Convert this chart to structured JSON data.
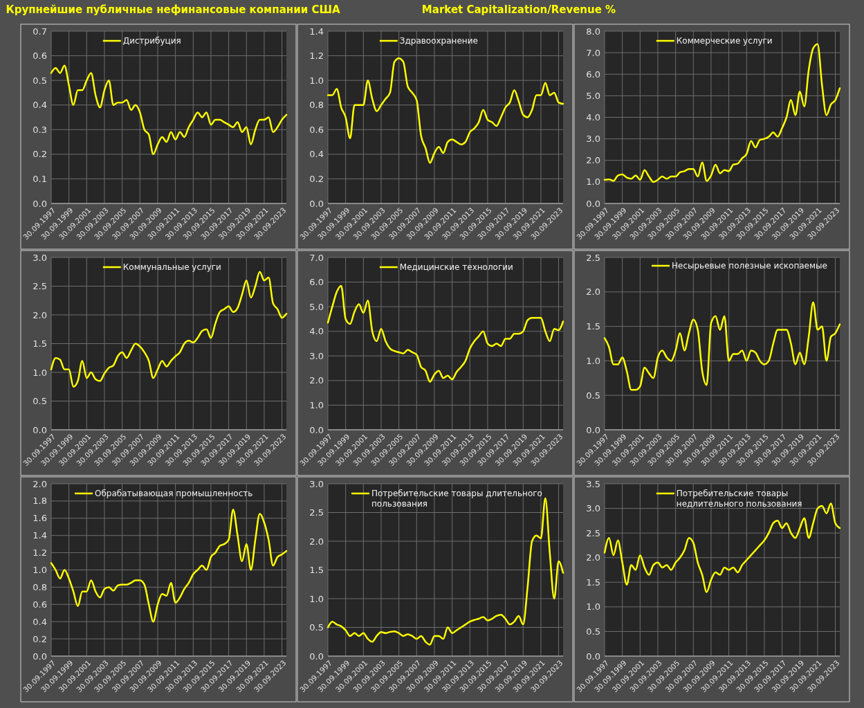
{
  "chart_data": [
    {
      "type": "line",
      "title": "Крупнейшие публичные нефинансовые компании США",
      "grid": true,
      "legend": "top",
      "x": [
        "1997-09-30",
        "1998-03-31",
        "1998-09-30",
        "1999-03-31",
        "1999-09-30",
        "2000-03-31",
        "2000-09-30",
        "2001-03-31",
        "2001-09-30",
        "2002-03-31",
        "2002-09-30",
        "2003-03-31",
        "2003-09-30",
        "2004-03-31",
        "2004-09-30",
        "2005-03-31",
        "2005-09-30",
        "2006-03-31",
        "2006-09-30",
        "2007-03-31",
        "2007-09-30",
        "2008-03-31",
        "2008-09-30",
        "2009-03-31",
        "2009-09-30",
        "2010-03-31",
        "2010-09-30",
        "2011-03-31",
        "2011-09-30",
        "2012-03-31",
        "2012-09-30",
        "2013-03-31",
        "2013-09-30",
        "2014-03-31",
        "2014-09-30",
        "2015-03-31",
        "2015-09-30",
        "2016-03-31",
        "2016-09-30",
        "2017-03-31",
        "2017-09-30",
        "2018-03-31",
        "2018-09-30",
        "2019-03-31",
        "2019-09-30",
        "2020-03-31",
        "2020-09-30",
        "2021-03-31",
        "2021-09-30",
        "2022-03-31",
        "2022-09-30",
        "2023-03-31",
        "2023-09-30",
        "2024-03-31"
      ],
      "xlim": [
        "1997-09-30",
        "2024-03-31"
      ],
      "xticks": [
        {
          "value": "1997-09-30",
          "label": "30.09.1997"
        },
        {
          "value": "1999-09-30",
          "label": "30.09.1999"
        },
        {
          "value": "2001-09-30",
          "label": "30.09.2001"
        },
        {
          "value": "2003-09-30",
          "label": "30.09.2003"
        },
        {
          "value": "2005-09-30",
          "label": "30.09.2005"
        },
        {
          "value": "2007-09-30",
          "label": "30.09.2007"
        },
        {
          "value": "2009-09-30",
          "label": "30.09.2009"
        },
        {
          "value": "2011-09-30",
          "label": "30.09.2011"
        },
        {
          "value": "2013-09-30",
          "label": "30.09.2013"
        },
        {
          "value": "2015-09-30",
          "label": "30.09.2015"
        },
        {
          "value": "2017-09-30",
          "label": "30.09.2017"
        },
        {
          "value": "2019-09-30",
          "label": "30.09.2019"
        },
        {
          "value": "2021-09-30",
          "label": "30.09.2021"
        },
        {
          "value": "2023-09-30",
          "label": "30.09.2023"
        }
      ],
      "ylim": [
        0,
        0.7
      ],
      "yticks": [
        {
          "value": 0,
          "label": "0.0"
        },
        0.1,
        0.2,
        0.3,
        0.4,
        0.5,
        0.6,
        0.7
      ],
      "series": [
        {
          "name": "Дистрибуция",
          "color": "#ffff00",
          "values": [
            0.53,
            0.55,
            0.53,
            0.56,
            0.48,
            0.4,
            0.46,
            0.46,
            0.5,
            0.53,
            0.44,
            0.39,
            0.46,
            0.5,
            0.4,
            0.41,
            0.41,
            0.42,
            0.38,
            0.4,
            0.37,
            0.3,
            0.28,
            0.2,
            0.24,
            0.27,
            0.25,
            0.29,
            0.26,
            0.29,
            0.27,
            0.31,
            0.34,
            0.37,
            0.35,
            0.37,
            0.32,
            0.34,
            0.34,
            0.33,
            0.32,
            0.31,
            0.33,
            0.29,
            0.31,
            0.24,
            0.3,
            0.34,
            0.34,
            0.35,
            0.29,
            0.31,
            0.34,
            0.36
          ]
        }
      ]
    },
    {
      "type": "line",
      "subtitle": "Market Capitalization/Revenue %",
      "grid": true,
      "legend": "top",
      "x": [
        "1997-09-30",
        "1998-03-31",
        "1998-09-30",
        "1999-03-31",
        "1999-09-30",
        "2000-03-31",
        "2000-09-30",
        "2001-03-31",
        "2001-09-30",
        "2002-03-31",
        "2002-09-30",
        "2003-03-31",
        "2003-09-30",
        "2004-03-31",
        "2004-09-30",
        "2005-03-31",
        "2005-09-30",
        "2006-03-31",
        "2006-09-30",
        "2007-03-31",
        "2007-09-30",
        "2008-03-31",
        "2008-09-30",
        "2009-03-31",
        "2009-09-30",
        "2010-03-31",
        "2010-09-30",
        "2011-03-31",
        "2011-09-30",
        "2012-03-31",
        "2012-09-30",
        "2013-03-31",
        "2013-09-30",
        "2014-03-31",
        "2014-09-30",
        "2015-03-31",
        "2015-09-30",
        "2016-03-31",
        "2016-09-30",
        "2017-03-31",
        "2017-09-30",
        "2018-03-31",
        "2018-09-30",
        "2019-03-31",
        "2019-09-30",
        "2020-03-31",
        "2020-09-30",
        "2021-03-31",
        "2021-09-30",
        "2022-03-31",
        "2022-09-30",
        "2023-03-31",
        "2023-09-30",
        "2024-03-31"
      ],
      "xlim": [
        "1997-09-30",
        "2024-03-31"
      ],
      "xticks": [
        {
          "value": "1997-09-30",
          "label": "30.09.1997"
        },
        {
          "value": "1999-09-30",
          "label": "30.09.1999"
        },
        {
          "value": "2001-09-30",
          "label": "30.09.2001"
        },
        {
          "value": "2003-09-30",
          "label": "30.09.2003"
        },
        {
          "value": "2005-09-30",
          "label": "30.09.2005"
        },
        {
          "value": "2007-09-30",
          "label": "30.09.2007"
        },
        {
          "value": "2009-09-30",
          "label": "30.09.2009"
        },
        {
          "value": "2011-09-30",
          "label": "30.09.2011"
        },
        {
          "value": "2013-09-30",
          "label": "30.09.2013"
        },
        {
          "value": "2015-09-30",
          "label": "30.09.2015"
        },
        {
          "value": "2017-09-30",
          "label": "30.09.2017"
        },
        {
          "value": "2019-09-30",
          "label": "30.09.2019"
        },
        {
          "value": "2021-09-30",
          "label": "30.09.2021"
        },
        {
          "value": "2023-09-30",
          "label": "30.09.2023"
        }
      ],
      "ylim": [
        0,
        1.4
      ],
      "yticks": [
        {
          "value": 0,
          "label": "0.0"
        },
        0.2,
        0.4,
        0.6,
        0.8,
        {
          "value": 1,
          "label": "1.0"
        },
        1.2,
        1.4
      ],
      "series": [
        {
          "name": "Здравоохранение",
          "color": "#ffff00",
          "values": [
            0.88,
            0.88,
            0.93,
            0.78,
            0.7,
            0.53,
            0.8,
            0.8,
            0.8,
            1.0,
            0.85,
            0.75,
            0.8,
            0.85,
            0.9,
            1.15,
            1.18,
            1.15,
            0.95,
            0.9,
            0.84,
            0.55,
            0.45,
            0.33,
            0.41,
            0.46,
            0.41,
            0.5,
            0.52,
            0.5,
            0.48,
            0.5,
            0.58,
            0.61,
            0.66,
            0.76,
            0.68,
            0.66,
            0.63,
            0.7,
            0.78,
            0.82,
            0.92,
            0.83,
            0.72,
            0.7,
            0.76,
            0.88,
            0.88,
            0.98,
            0.88,
            0.9,
            0.82,
            0.81
          ]
        }
      ]
    },
    {
      "type": "line",
      "grid": true,
      "legend": "top",
      "x": [
        "1997-09-30",
        "1998-03-31",
        "1998-09-30",
        "1999-03-31",
        "1999-09-30",
        "2000-03-31",
        "2000-09-30",
        "2001-03-31",
        "2001-09-30",
        "2002-03-31",
        "2002-09-30",
        "2003-03-31",
        "2003-09-30",
        "2004-03-31",
        "2004-09-30",
        "2005-03-31",
        "2005-09-30",
        "2006-03-31",
        "2006-09-30",
        "2007-03-31",
        "2007-09-30",
        "2008-03-31",
        "2008-09-30",
        "2009-03-31",
        "2009-09-30",
        "2010-03-31",
        "2010-09-30",
        "2011-03-31",
        "2011-09-30",
        "2012-03-31",
        "2012-09-30",
        "2013-03-31",
        "2013-09-30",
        "2014-03-31",
        "2014-09-30",
        "2015-03-31",
        "2015-09-30",
        "2016-03-31",
        "2016-09-30",
        "2017-03-31",
        "2017-09-30",
        "2018-03-31",
        "2018-09-30",
        "2019-03-31",
        "2019-09-30",
        "2020-03-31",
        "2020-09-30",
        "2021-03-31",
        "2021-09-30",
        "2022-03-31",
        "2022-09-30",
        "2023-03-31",
        "2023-09-30",
        "2024-03-31"
      ],
      "xlim": [
        "1997-09-30",
        "2024-03-31"
      ],
      "xticks": [
        {
          "value": "1997-09-30",
          "label": "30.09.1997"
        },
        {
          "value": "1999-09-30",
          "label": "30.09.1999"
        },
        {
          "value": "2001-09-30",
          "label": "30.09.2001"
        },
        {
          "value": "2003-09-30",
          "label": "30.09.2003"
        },
        {
          "value": "2005-09-30",
          "label": "30.09.2005"
        },
        {
          "value": "2007-09-30",
          "label": "30.09.2007"
        },
        {
          "value": "2009-09-30",
          "label": "30.09.2009"
        },
        {
          "value": "2011-09-30",
          "label": "30.09.2011"
        },
        {
          "value": "2013-09-30",
          "label": "30.09.2013"
        },
        {
          "value": "2015-09-30",
          "label": "30.09.2015"
        },
        {
          "value": "2017-09-30",
          "label": "30.09.2017"
        },
        {
          "value": "2019-09-30",
          "label": "30.09.2019"
        },
        {
          "value": "2021-09-30",
          "label": "30.09.2021"
        },
        {
          "value": "2023-09-30",
          "label": "30.09.2023"
        }
      ],
      "ylim": [
        0,
        8
      ],
      "yticks": [
        {
          "value": 0,
          "label": "0.0"
        },
        {
          "value": 1,
          "label": "1.0"
        },
        {
          "value": 2,
          "label": "2.0"
        },
        {
          "value": 3,
          "label": "3.0"
        },
        {
          "value": 4,
          "label": "4.0"
        },
        {
          "value": 5,
          "label": "5.0"
        },
        {
          "value": 6,
          "label": "6.0"
        },
        {
          "value": 7,
          "label": "7.0"
        },
        {
          "value": 8,
          "label": "8.0"
        }
      ],
      "series": [
        {
          "name": "Коммерческие услуги",
          "color": "#ffff00",
          "values": [
            1.1,
            1.12,
            1.05,
            1.3,
            1.35,
            1.2,
            1.15,
            1.3,
            1.1,
            1.55,
            1.25,
            1.0,
            1.1,
            1.25,
            1.15,
            1.25,
            1.25,
            1.45,
            1.5,
            1.6,
            1.6,
            1.25,
            1.9,
            1.05,
            1.3,
            1.8,
            1.4,
            1.55,
            1.5,
            1.8,
            1.85,
            2.1,
            2.3,
            2.9,
            2.6,
            2.95,
            3.0,
            3.1,
            3.3,
            3.1,
            3.5,
            4.0,
            4.8,
            4.1,
            5.2,
            4.5,
            6.2,
            7.2,
            7.4,
            5.5,
            4.1,
            4.6,
            4.8,
            5.35
          ]
        }
      ]
    },
    {
      "type": "line",
      "grid": true,
      "legend": "top",
      "x": [
        "1997-09-30",
        "1998-03-31",
        "1998-09-30",
        "1999-03-31",
        "1999-09-30",
        "2000-03-31",
        "2000-09-30",
        "2001-03-31",
        "2001-09-30",
        "2002-03-31",
        "2002-09-30",
        "2003-03-31",
        "2003-09-30",
        "2004-03-31",
        "2004-09-30",
        "2005-03-31",
        "2005-09-30",
        "2006-03-31",
        "2006-09-30",
        "2007-03-31",
        "2007-09-30",
        "2008-03-31",
        "2008-09-30",
        "2009-03-31",
        "2009-09-30",
        "2010-03-31",
        "2010-09-30",
        "2011-03-31",
        "2011-09-30",
        "2012-03-31",
        "2012-09-30",
        "2013-03-31",
        "2013-09-30",
        "2014-03-31",
        "2014-09-30",
        "2015-03-31",
        "2015-09-30",
        "2016-03-31",
        "2016-09-30",
        "2017-03-31",
        "2017-09-30",
        "2018-03-31",
        "2018-09-30",
        "2019-03-31",
        "2019-09-30",
        "2020-03-31",
        "2020-09-30",
        "2021-03-31",
        "2021-09-30",
        "2022-03-31",
        "2022-09-30",
        "2023-03-31",
        "2023-09-30",
        "2024-03-31"
      ],
      "xlim": [
        "1997-09-30",
        "2024-03-31"
      ],
      "xticks": [
        {
          "value": "1997-09-30",
          "label": "30.09.1997"
        },
        {
          "value": "1999-09-30",
          "label": "30.09.1999"
        },
        {
          "value": "2001-09-30",
          "label": "30.09.2001"
        },
        {
          "value": "2003-09-30",
          "label": "30.09.2003"
        },
        {
          "value": "2005-09-30",
          "label": "30.09.2005"
        },
        {
          "value": "2007-09-30",
          "label": "30.09.2007"
        },
        {
          "value": "2009-09-30",
          "label": "30.09.2009"
        },
        {
          "value": "2011-09-30",
          "label": "30.09.2011"
        },
        {
          "value": "2013-09-30",
          "label": "30.09.2013"
        },
        {
          "value": "2015-09-30",
          "label": "30.09.2015"
        },
        {
          "value": "2017-09-30",
          "label": "30.09.2017"
        },
        {
          "value": "2019-09-30",
          "label": "30.09.2019"
        },
        {
          "value": "2021-09-30",
          "label": "30.09.2021"
        },
        {
          "value": "2023-09-30",
          "label": "30.09.2023"
        }
      ],
      "ylim": [
        0,
        3
      ],
      "yticks": [
        {
          "value": 0,
          "label": "0.0"
        },
        0.5,
        {
          "value": 1,
          "label": "1.0"
        },
        1.5,
        {
          "value": 2,
          "label": "2.0"
        },
        2.5,
        {
          "value": 3,
          "label": "3.0"
        }
      ],
      "series": [
        {
          "name": "Коммунальные услуги",
          "color": "#ffff00",
          "values": [
            1.05,
            1.25,
            1.22,
            1.05,
            1.05,
            0.75,
            0.85,
            1.2,
            0.9,
            1.0,
            0.88,
            0.85,
            0.98,
            1.08,
            1.12,
            1.28,
            1.35,
            1.25,
            1.38,
            1.5,
            1.45,
            1.35,
            1.2,
            0.9,
            1.05,
            1.2,
            1.1,
            1.2,
            1.28,
            1.35,
            1.5,
            1.55,
            1.52,
            1.6,
            1.72,
            1.75,
            1.6,
            1.85,
            2.05,
            2.1,
            2.15,
            2.05,
            2.12,
            2.35,
            2.6,
            2.3,
            2.5,
            2.75,
            2.6,
            2.65,
            2.2,
            2.1,
            1.95,
            2.02
          ]
        }
      ]
    },
    {
      "type": "line",
      "grid": true,
      "legend": "top",
      "x": [
        "1997-09-30",
        "1998-03-31",
        "1998-09-30",
        "1999-03-31",
        "1999-09-30",
        "2000-03-31",
        "2000-09-30",
        "2001-03-31",
        "2001-09-30",
        "2002-03-31",
        "2002-09-30",
        "2003-03-31",
        "2003-09-30",
        "2004-03-31",
        "2004-09-30",
        "2005-03-31",
        "2005-09-30",
        "2006-03-31",
        "2006-09-30",
        "2007-03-31",
        "2007-09-30",
        "2008-03-31",
        "2008-09-30",
        "2009-03-31",
        "2009-09-30",
        "2010-03-31",
        "2010-09-30",
        "2011-03-31",
        "2011-09-30",
        "2012-03-31",
        "2012-09-30",
        "2013-03-31",
        "2013-09-30",
        "2014-03-31",
        "2014-09-30",
        "2015-03-31",
        "2015-09-30",
        "2016-03-31",
        "2016-09-30",
        "2017-03-31",
        "2017-09-30",
        "2018-03-31",
        "2018-09-30",
        "2019-03-31",
        "2019-09-30",
        "2020-03-31",
        "2020-09-30",
        "2021-03-31",
        "2021-09-30",
        "2022-03-31",
        "2022-09-30",
        "2023-03-31",
        "2023-09-30",
        "2024-03-31"
      ],
      "xlim": [
        "1997-09-30",
        "2024-03-31"
      ],
      "xticks": [
        {
          "value": "1997-09-30",
          "label": "30.09.1997"
        },
        {
          "value": "1999-09-30",
          "label": "30.09.1999"
        },
        {
          "value": "2001-09-30",
          "label": "30.09.2001"
        },
        {
          "value": "2003-09-30",
          "label": "30.09.2003"
        },
        {
          "value": "2005-09-30",
          "label": "30.09.2005"
        },
        {
          "value": "2007-09-30",
          "label": "30.09.2007"
        },
        {
          "value": "2009-09-30",
          "label": "30.09.2009"
        },
        {
          "value": "2011-09-30",
          "label": "30.09.2011"
        },
        {
          "value": "2013-09-30",
          "label": "30.09.2013"
        },
        {
          "value": "2015-09-30",
          "label": "30.09.2015"
        },
        {
          "value": "2017-09-30",
          "label": "30.09.2017"
        },
        {
          "value": "2019-09-30",
          "label": "30.09.2019"
        },
        {
          "value": "2021-09-30",
          "label": "30.09.2021"
        },
        {
          "value": "2023-09-30",
          "label": "30.09.2023"
        }
      ],
      "ylim": [
        0,
        7
      ],
      "yticks": [
        {
          "value": 0,
          "label": "0.0"
        },
        {
          "value": 1,
          "label": "1.0"
        },
        {
          "value": 2,
          "label": "2.0"
        },
        {
          "value": 3,
          "label": "3.0"
        },
        {
          "value": 4,
          "label": "4.0"
        },
        {
          "value": 5,
          "label": "5.0"
        },
        {
          "value": 6,
          "label": "6.0"
        },
        {
          "value": 7,
          "label": "7.0"
        }
      ],
      "series": [
        {
          "name": "Медицинские технологии",
          "color": "#ffff00",
          "values": [
            4.35,
            5.0,
            5.6,
            5.85,
            4.5,
            4.3,
            4.8,
            5.1,
            4.75,
            5.25,
            4.0,
            3.6,
            4.1,
            3.6,
            3.3,
            3.2,
            3.15,
            3.1,
            3.25,
            3.15,
            3.05,
            2.55,
            2.4,
            1.95,
            2.25,
            2.4,
            2.1,
            2.2,
            2.05,
            2.35,
            2.55,
            2.8,
            3.3,
            3.6,
            3.8,
            4.0,
            3.5,
            3.4,
            3.5,
            3.4,
            3.7,
            3.7,
            3.9,
            3.9,
            4.0,
            4.45,
            4.55,
            4.55,
            4.55,
            4.0,
            3.6,
            4.1,
            4.05,
            4.4
          ]
        }
      ]
    },
    {
      "type": "line",
      "grid": true,
      "legend": "top right",
      "x": [
        "1997-09-30",
        "1998-03-31",
        "1998-09-30",
        "1999-03-31",
        "1999-09-30",
        "2000-03-31",
        "2000-09-30",
        "2001-03-31",
        "2001-09-30",
        "2002-03-31",
        "2002-09-30",
        "2003-03-31",
        "2003-09-30",
        "2004-03-31",
        "2004-09-30",
        "2005-03-31",
        "2005-09-30",
        "2006-03-31",
        "2006-09-30",
        "2007-03-31",
        "2007-09-30",
        "2008-03-31",
        "2008-09-30",
        "2009-03-31",
        "2009-09-30",
        "2010-03-31",
        "2010-09-30",
        "2011-03-31",
        "2011-09-30",
        "2012-03-31",
        "2012-09-30",
        "2013-03-31",
        "2013-09-30",
        "2014-03-31",
        "2014-09-30",
        "2015-03-31",
        "2015-09-30",
        "2016-03-31",
        "2016-09-30",
        "2017-03-31",
        "2017-09-30",
        "2018-03-31",
        "2018-09-30",
        "2019-03-31",
        "2019-09-30",
        "2020-03-31",
        "2020-09-30",
        "2021-03-31",
        "2021-09-30",
        "2022-03-31",
        "2022-09-30",
        "2023-03-31",
        "2023-09-30",
        "2024-03-31"
      ],
      "xlim": [
        "1997-09-30",
        "2024-03-31"
      ],
      "xticks": [
        {
          "value": "1997-09-30",
          "label": "30.09.1997"
        },
        {
          "value": "1999-09-30",
          "label": "30.09.1999"
        },
        {
          "value": "2001-09-30",
          "label": "30.09.2001"
        },
        {
          "value": "2003-09-30",
          "label": "30.09.2003"
        },
        {
          "value": "2005-09-30",
          "label": "30.09.2005"
        },
        {
          "value": "2007-09-30",
          "label": "30.09.2007"
        },
        {
          "value": "2009-09-30",
          "label": "30.09.2009"
        },
        {
          "value": "2011-09-30",
          "label": "30.09.2011"
        },
        {
          "value": "2013-09-30",
          "label": "30.09.2013"
        },
        {
          "value": "2015-09-30",
          "label": "30.09.2015"
        },
        {
          "value": "2017-09-30",
          "label": "30.09.2017"
        },
        {
          "value": "2019-09-30",
          "label": "30.09.2019"
        },
        {
          "value": "2021-09-30",
          "label": "30.09.2021"
        },
        {
          "value": "2023-09-30",
          "label": "30.09.2023"
        }
      ],
      "ylim": [
        0,
        2.5
      ],
      "yticks": [
        {
          "value": 0,
          "label": "0.0"
        },
        0.5,
        {
          "value": 1,
          "label": "1.0"
        },
        1.5,
        {
          "value": 2,
          "label": "2.0"
        },
        2.5
      ],
      "series": [
        {
          "name": "Несырьевые полезные ископаемые",
          "color": "#ffff00",
          "values": [
            1.33,
            1.2,
            0.95,
            0.95,
            1.05,
            0.85,
            0.58,
            0.58,
            0.63,
            0.9,
            0.82,
            0.75,
            1.05,
            1.15,
            1.05,
            1.0,
            1.15,
            1.4,
            1.15,
            1.4,
            1.6,
            1.45,
            0.85,
            0.65,
            1.55,
            1.65,
            1.45,
            1.65,
            1.0,
            1.1,
            1.1,
            1.15,
            1.0,
            1.15,
            1.12,
            1.0,
            0.95,
            1.0,
            1.25,
            1.45,
            1.45,
            1.45,
            1.25,
            0.95,
            1.12,
            0.95,
            1.35,
            1.85,
            1.45,
            1.5,
            1.0,
            1.35,
            1.4,
            1.53
          ]
        }
      ]
    },
    {
      "type": "line",
      "grid": true,
      "legend": "top left",
      "x": [
        "1997-09-30",
        "1998-03-31",
        "1998-09-30",
        "1999-03-31",
        "1999-09-30",
        "2000-03-31",
        "2000-09-30",
        "2001-03-31",
        "2001-09-30",
        "2002-03-31",
        "2002-09-30",
        "2003-03-31",
        "2003-09-30",
        "2004-03-31",
        "2004-09-30",
        "2005-03-31",
        "2005-09-30",
        "2006-03-31",
        "2006-09-30",
        "2007-03-31",
        "2007-09-30",
        "2008-03-31",
        "2008-09-30",
        "2009-03-31",
        "2009-09-30",
        "2010-03-31",
        "2010-09-30",
        "2011-03-31",
        "2011-09-30",
        "2012-03-31",
        "2012-09-30",
        "2013-03-31",
        "2013-09-30",
        "2014-03-31",
        "2014-09-30",
        "2015-03-31",
        "2015-09-30",
        "2016-03-31",
        "2016-09-30",
        "2017-03-31",
        "2017-09-30",
        "2018-03-31",
        "2018-09-30",
        "2019-03-31",
        "2019-09-30",
        "2020-03-31",
        "2020-09-30",
        "2021-03-31",
        "2021-09-30",
        "2022-03-31",
        "2022-09-30",
        "2023-03-31",
        "2023-09-30",
        "2024-03-31"
      ],
      "xlim": [
        "1997-09-30",
        "2024-03-31"
      ],
      "xticks": [
        {
          "value": "1997-09-30",
          "label": "30.09.1997"
        },
        {
          "value": "1999-09-30",
          "label": "30.09.1999"
        },
        {
          "value": "2001-09-30",
          "label": "30.09.2001"
        },
        {
          "value": "2003-09-30",
          "label": "30.09.2003"
        },
        {
          "value": "2005-09-30",
          "label": "30.09.2005"
        },
        {
          "value": "2007-09-30",
          "label": "30.09.2007"
        },
        {
          "value": "2009-09-30",
          "label": "30.09.2009"
        },
        {
          "value": "2011-09-30",
          "label": "30.09.2011"
        },
        {
          "value": "2013-09-30",
          "label": "30.09.2013"
        },
        {
          "value": "2015-09-30",
          "label": "30.09.2015"
        },
        {
          "value": "2017-09-30",
          "label": "30.09.2017"
        },
        {
          "value": "2019-09-30",
          "label": "30.09.2019"
        },
        {
          "value": "2021-09-30",
          "label": "30.09.2021"
        },
        {
          "value": "2023-09-30",
          "label": "30.09.2023"
        }
      ],
      "ylim": [
        0,
        2
      ],
      "yticks": [
        {
          "value": 0,
          "label": "0.0"
        },
        0.2,
        0.4,
        0.6,
        0.8,
        {
          "value": 1,
          "label": "1.0"
        },
        1.2,
        1.4,
        1.6,
        1.8,
        {
          "value": 2,
          "label": "2.0"
        }
      ],
      "series": [
        {
          "name": "Обрабатывающая промышленность",
          "color": "#ffff00",
          "values": [
            1.08,
            1.0,
            0.9,
            1.0,
            0.9,
            0.75,
            0.58,
            0.75,
            0.75,
            0.88,
            0.75,
            0.68,
            0.78,
            0.8,
            0.76,
            0.82,
            0.83,
            0.83,
            0.85,
            0.88,
            0.88,
            0.83,
            0.6,
            0.4,
            0.6,
            0.72,
            0.7,
            0.85,
            0.62,
            0.68,
            0.78,
            0.85,
            0.95,
            1.0,
            1.05,
            1.0,
            1.15,
            1.2,
            1.28,
            1.3,
            1.35,
            1.7,
            1.4,
            1.1,
            1.3,
            1.0,
            1.35,
            1.65,
            1.55,
            1.35,
            1.05,
            1.15,
            1.18,
            1.22
          ]
        }
      ]
    },
    {
      "type": "line",
      "grid": true,
      "legend": "top left",
      "x": [
        "1997-09-30",
        "1998-03-31",
        "1998-09-30",
        "1999-03-31",
        "1999-09-30",
        "2000-03-31",
        "2000-09-30",
        "2001-03-31",
        "2001-09-30",
        "2002-03-31",
        "2002-09-30",
        "2003-03-31",
        "2003-09-30",
        "2004-03-31",
        "2004-09-30",
        "2005-03-31",
        "2005-09-30",
        "2006-03-31",
        "2006-09-30",
        "2007-03-31",
        "2007-09-30",
        "2008-03-31",
        "2008-09-30",
        "2009-03-31",
        "2009-09-30",
        "2010-03-31",
        "2010-09-30",
        "2011-03-31",
        "2011-09-30",
        "2012-03-31",
        "2012-09-30",
        "2013-03-31",
        "2013-09-30",
        "2014-03-31",
        "2014-09-30",
        "2015-03-31",
        "2015-09-30",
        "2016-03-31",
        "2016-09-30",
        "2017-03-31",
        "2017-09-30",
        "2018-03-31",
        "2018-09-30",
        "2019-03-31",
        "2019-09-30",
        "2020-03-31",
        "2020-09-30",
        "2021-03-31",
        "2021-09-30",
        "2022-03-31",
        "2022-09-30",
        "2023-03-31",
        "2023-09-30",
        "2024-03-31"
      ],
      "xlim": [
        "1997-09-30",
        "2024-03-31"
      ],
      "xticks": [
        {
          "value": "1997-09-30",
          "label": "30.09.1997"
        },
        {
          "value": "1999-09-30",
          "label": "30.09.1999"
        },
        {
          "value": "2001-09-30",
          "label": "30.09.2001"
        },
        {
          "value": "2003-09-30",
          "label": "30.09.2003"
        },
        {
          "value": "2005-09-30",
          "label": "30.09.2005"
        },
        {
          "value": "2007-09-30",
          "label": "30.09.2007"
        },
        {
          "value": "2009-09-30",
          "label": "30.09.2009"
        },
        {
          "value": "2011-09-30",
          "label": "30.09.2011"
        },
        {
          "value": "2013-09-30",
          "label": "30.09.2013"
        },
        {
          "value": "2015-09-30",
          "label": "30.09.2015"
        },
        {
          "value": "2017-09-30",
          "label": "30.09.2017"
        },
        {
          "value": "2019-09-30",
          "label": "30.09.2019"
        },
        {
          "value": "2021-09-30",
          "label": "30.09.2021"
        },
        {
          "value": "2023-09-30",
          "label": "30.09.2023"
        }
      ],
      "ylim": [
        0,
        3
      ],
      "yticks": [
        {
          "value": 0,
          "label": "0.0"
        },
        0.5,
        {
          "value": 1,
          "label": "1.0"
        },
        1.5,
        {
          "value": 2,
          "label": "2.0"
        },
        2.5,
        {
          "value": 3,
          "label": "3.0"
        }
      ],
      "series": [
        {
          "name": "Потребительские товары длительного пользования",
          "color": "#ffff00",
          "values": [
            0.5,
            0.6,
            0.55,
            0.52,
            0.45,
            0.35,
            0.4,
            0.35,
            0.4,
            0.3,
            0.25,
            0.35,
            0.42,
            0.4,
            0.42,
            0.43,
            0.4,
            0.35,
            0.38,
            0.35,
            0.3,
            0.35,
            0.25,
            0.2,
            0.35,
            0.35,
            0.3,
            0.5,
            0.4,
            0.45,
            0.5,
            0.55,
            0.6,
            0.63,
            0.65,
            0.68,
            0.62,
            0.65,
            0.7,
            0.72,
            0.65,
            0.55,
            0.6,
            0.7,
            0.55,
            1.2,
            2.0,
            2.1,
            2.05,
            2.75,
            1.8,
            1.0,
            1.65,
            1.45
          ]
        }
      ]
    },
    {
      "type": "line",
      "grid": true,
      "legend": "top",
      "x": [
        "1997-09-30",
        "1998-03-31",
        "1998-09-30",
        "1999-03-31",
        "1999-09-30",
        "2000-03-31",
        "2000-09-30",
        "2001-03-31",
        "2001-09-30",
        "2002-03-31",
        "2002-09-30",
        "2003-03-31",
        "2003-09-30",
        "2004-03-31",
        "2004-09-30",
        "2005-03-31",
        "2005-09-30",
        "2006-03-31",
        "2006-09-30",
        "2007-03-31",
        "2007-09-30",
        "2008-03-31",
        "2008-09-30",
        "2009-03-31",
        "2009-09-30",
        "2010-03-31",
        "2010-09-30",
        "2011-03-31",
        "2011-09-30",
        "2012-03-31",
        "2012-09-30",
        "2013-03-31",
        "2013-09-30",
        "2014-03-31",
        "2014-09-30",
        "2015-03-31",
        "2015-09-30",
        "2016-03-31",
        "2016-09-30",
        "2017-03-31",
        "2017-09-30",
        "2018-03-31",
        "2018-09-30",
        "2019-03-31",
        "2019-09-30",
        "2020-03-31",
        "2020-09-30",
        "2021-03-31",
        "2021-09-30",
        "2022-03-31",
        "2022-09-30",
        "2023-03-31",
        "2023-09-30",
        "2024-03-31"
      ],
      "xlim": [
        "1997-09-30",
        "2024-03-31"
      ],
      "xticks": [
        {
          "value": "1997-09-30",
          "label": "30.09.1997"
        },
        {
          "value": "1999-09-30",
          "label": "30.09.1999"
        },
        {
          "value": "2001-09-30",
          "label": "30.09.2001"
        },
        {
          "value": "2003-09-30",
          "label": "30.09.2003"
        },
        {
          "value": "2005-09-30",
          "label": "30.09.2005"
        },
        {
          "value": "2007-09-30",
          "label": "30.09.2007"
        },
        {
          "value": "2009-09-30",
          "label": "30.09.2009"
        },
        {
          "value": "2011-09-30",
          "label": "30.09.2011"
        },
        {
          "value": "2013-09-30",
          "label": "30.09.2013"
        },
        {
          "value": "2015-09-30",
          "label": "30.09.2015"
        },
        {
          "value": "2017-09-30",
          "label": "30.09.2017"
        },
        {
          "value": "2019-09-30",
          "label": "30.09.2019"
        },
        {
          "value": "2021-09-30",
          "label": "30.09.2021"
        },
        {
          "value": "2023-09-30",
          "label": "30.09.2023"
        }
      ],
      "ylim": [
        0,
        3.5
      ],
      "yticks": [
        {
          "value": 0,
          "label": "0.0"
        },
        0.5,
        {
          "value": 1,
          "label": "1.0"
        },
        1.5,
        {
          "value": 2,
          "label": "2.0"
        },
        2.5,
        {
          "value": 3,
          "label": "3.0"
        },
        3.5
      ],
      "series": [
        {
          "name": "Потребительские товары недлительного пользования",
          "color": "#ffff00",
          "values": [
            2.1,
            2.4,
            2.05,
            2.35,
            1.9,
            1.45,
            1.85,
            1.75,
            2.05,
            1.8,
            1.65,
            1.85,
            1.9,
            1.8,
            1.85,
            1.75,
            1.9,
            2.0,
            2.15,
            2.4,
            2.3,
            1.9,
            1.65,
            1.3,
            1.55,
            1.7,
            1.65,
            1.8,
            1.75,
            1.8,
            1.7,
            1.85,
            1.95,
            2.05,
            2.15,
            2.25,
            2.35,
            2.5,
            2.7,
            2.75,
            2.6,
            2.7,
            2.5,
            2.4,
            2.6,
            2.8,
            2.4,
            2.7,
            3.0,
            3.05,
            2.9,
            3.1,
            2.7,
            2.6
          ]
        }
      ]
    }
  ]
}
